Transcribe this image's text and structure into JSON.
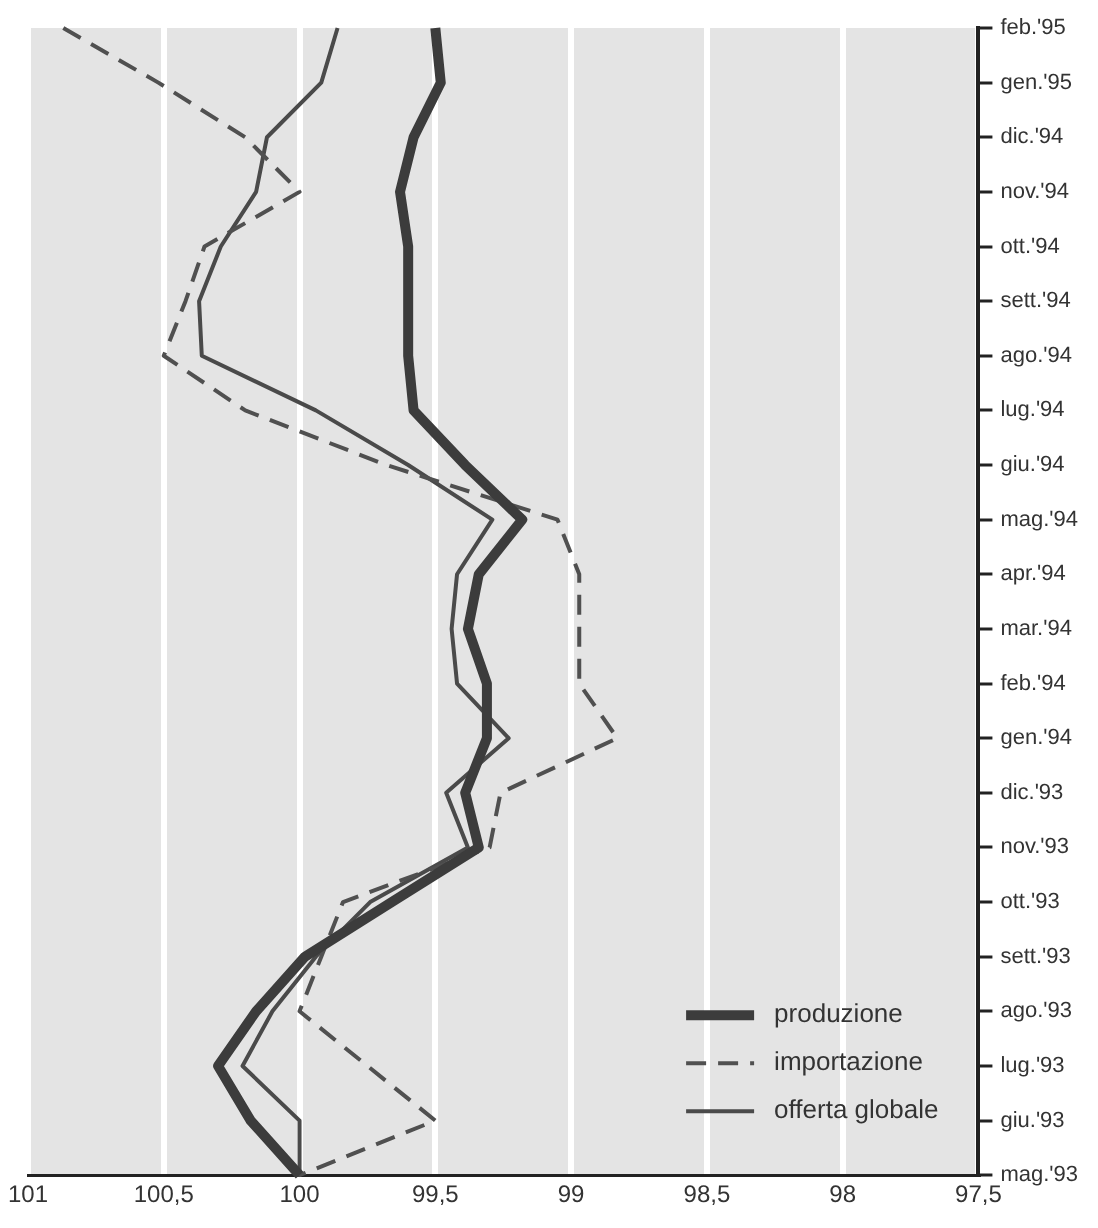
{
  "chart_data": {
    "type": "line",
    "orientation": "horizontal",
    "categories": [
      "feb.'95",
      "gen.'95",
      "dic.'94",
      "nov.'94",
      "ott.'94",
      "sett.'94",
      "ago.'94",
      "lug.'94",
      "giu.'94",
      "mag.'94",
      "apr.'94",
      "mar.'94",
      "feb.'94",
      "gen.'94",
      "dic.'93",
      "nov.'93",
      "ott.'93",
      "sett.'93",
      "ago.'93",
      "lug.'93",
      "giu.'93",
      "mag.'93"
    ],
    "series": [
      {
        "name": "produzione",
        "color": "#3c3c3c",
        "values": [
          99.5,
          99.48,
          99.58,
          99.63,
          99.6,
          99.6,
          99.6,
          99.58,
          99.39,
          99.18,
          99.34,
          99.38,
          99.31,
          99.31,
          99.39,
          99.34,
          99.66,
          99.98,
          100.16,
          100.3,
          100.18,
          100
        ]
      },
      {
        "name": "importazione",
        "color": "#505050",
        "line_style": "dashed",
        "values": [
          100.87,
          100.52,
          100.2,
          100.0,
          100.35,
          100.42,
          100.5,
          100.2,
          99.68,
          99.05,
          98.97,
          98.97,
          98.97,
          98.83,
          99.26,
          99.3,
          99.84,
          99.92,
          100.0,
          99.75,
          99.5,
          100
        ]
      },
      {
        "name": "offerta globale",
        "color": "#4a4a4a",
        "values": [
          99.86,
          99.92,
          100.12,
          100.16,
          100.29,
          100.37,
          100.36,
          99.94,
          99.6,
          99.29,
          99.42,
          99.44,
          99.42,
          99.23,
          99.46,
          99.38,
          99.74,
          99.94,
          100.1,
          100.21,
          100.0,
          100
        ]
      }
    ],
    "xlim": [
      101,
      97.5
    ],
    "xticks": [
      101,
      {
        "value": 100.5,
        "label": "100,5"
      },
      100,
      {
        "value": 99.5,
        "label": "99,5"
      },
      99,
      {
        "value": 98.5,
        "label": "98,5"
      },
      98,
      {
        "value": 97.5,
        "label": "97,5"
      }
    ],
    "grid": "x",
    "legend": "bottom right",
    "marker": "none"
  }
}
